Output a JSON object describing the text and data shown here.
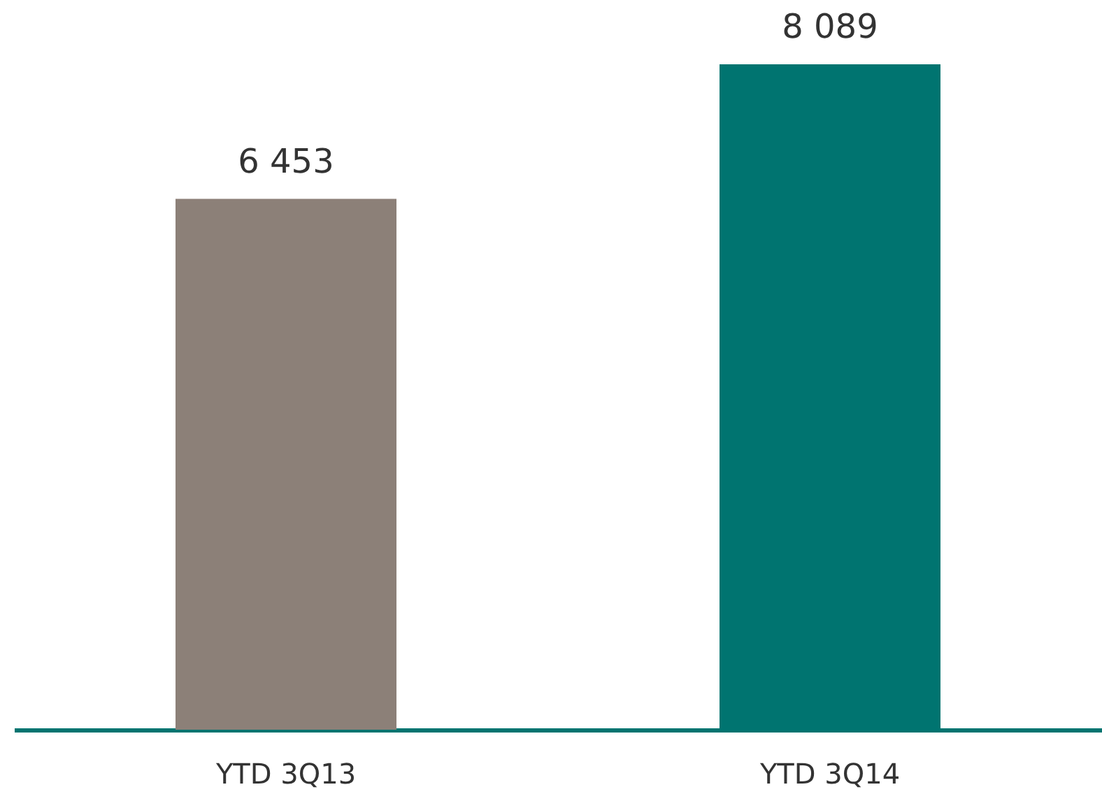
{
  "chart_data": {
    "type": "bar",
    "categories": [
      "YTD 3Q13",
      "YTD 3Q14"
    ],
    "values": [
      6453,
      8089
    ],
    "colors": [
      "#8c8078",
      "#007470"
    ],
    "value_labels": [
      "6 453",
      "8 089"
    ]
  }
}
